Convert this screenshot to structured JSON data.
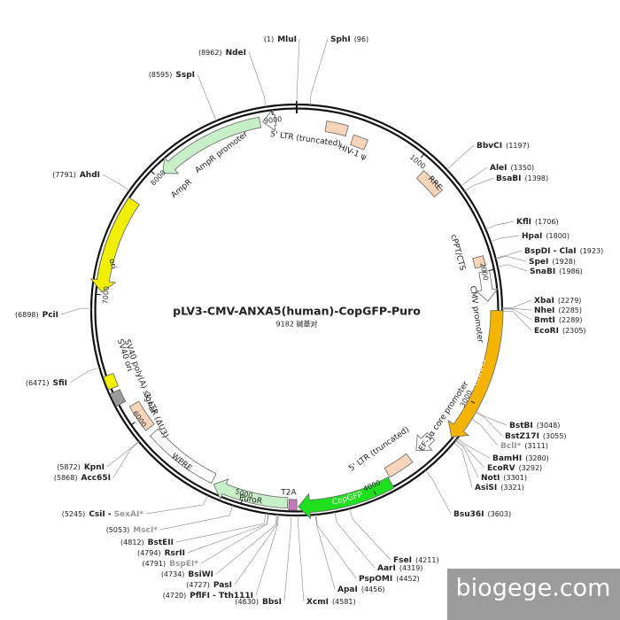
{
  "map": {
    "title": "pLV3-CMV-ANXA5(human)-CopGFP-Puro",
    "size_label": "9182 碱基对",
    "ticks": [
      1000,
      2000,
      3000,
      4000,
      5000,
      6000,
      7000,
      8000,
      9000
    ],
    "features": [
      {
        "label": "5' LTR (truncated)",
        "color": "#f8d5b8"
      },
      {
        "label": "HIV-1 ψ",
        "color": "#f8d5b8"
      },
      {
        "label": "RRE",
        "color": "#f8d5b8"
      },
      {
        "label": "cPPT/CTS",
        "color": "#f8d5b8"
      },
      {
        "label": "CMV promoter",
        "color": "#ffffff"
      },
      {
        "label": "ANXA5",
        "color": "#f5b400"
      },
      {
        "label": "EF-1α core promoter",
        "color": "#ffffff"
      },
      {
        "label": "5' LTR (truncated)",
        "color": "#f8d5b8"
      },
      {
        "label": "CopGFP",
        "color": "#1ee01e"
      },
      {
        "label": "T2A",
        "color": "#c878b8"
      },
      {
        "label": "PuroR",
        "color": "#c8f0c8"
      },
      {
        "label": "WPRE",
        "color": "#ffffff"
      },
      {
        "label": "3' LTR (ΔU3)",
        "color": "#f8d5b8"
      },
      {
        "label": "SV40 poly(A) signal",
        "color": "#9a9a9a"
      },
      {
        "label": "SV40 ori",
        "color": "#f0f000"
      },
      {
        "label": "ori",
        "color": "#f0f000"
      },
      {
        "label": "AmpR",
        "color": "#c8f0c8"
      },
      {
        "label": "AmpR promoter",
        "color": "#ffffff"
      }
    ],
    "sites": [
      {
        "name": "MluI",
        "position": "(1)"
      },
      {
        "name": "SphI",
        "position": "(96)"
      },
      {
        "name": "NdeI",
        "position": "(8962)"
      },
      {
        "name": "SspI",
        "position": "(8595)"
      },
      {
        "name": "AhdI",
        "position": "(7791)"
      },
      {
        "name": "PciI",
        "position": "(6898)"
      },
      {
        "name": "SfiI",
        "position": "(6471)"
      },
      {
        "name": "KpnI",
        "position": "(5872)"
      },
      {
        "name": "Acc65I",
        "position": "(5868)"
      },
      {
        "name": "CsiI -",
        "dim_part": "SexAI*",
        "position": "(5245)"
      },
      {
        "name": "MscI*",
        "position": "(5053)",
        "dim": true
      },
      {
        "name": "BstEII",
        "position": "(4812)"
      },
      {
        "name": "RsrII",
        "position": "(4794)"
      },
      {
        "name": "BspEI*",
        "position": "(4791)",
        "dim": true
      },
      {
        "name": "BsiWI",
        "position": "(4734)"
      },
      {
        "name": "PasI",
        "position": "(4727)"
      },
      {
        "name": "PflFI - Tth111I",
        "position": "(4720)"
      },
      {
        "name": "BbsI",
        "position": "(4630)"
      },
      {
        "name": "XcmI",
        "position": "(4581)"
      },
      {
        "name": "ApaI",
        "position": "(4456)"
      },
      {
        "name": "PspOMI",
        "position": "(4452)"
      },
      {
        "name": "AarI",
        "position": "(4319)"
      },
      {
        "name": "FseI",
        "position": "(4211)"
      },
      {
        "name": "Bsu36I",
        "position": "(3603)"
      },
      {
        "name": "AsiSI",
        "position": "(3321)"
      },
      {
        "name": "NotI",
        "position": "(3301)"
      },
      {
        "name": "EcoRV",
        "position": "(3292)"
      },
      {
        "name": "BamHI",
        "position": "(3280)"
      },
      {
        "name": "BclI*",
        "position": "(3111)",
        "dim": true
      },
      {
        "name": "BstZ17I",
        "position": "(3055)"
      },
      {
        "name": "BstBI",
        "position": "(3048)"
      },
      {
        "name": "EcoRI",
        "position": "(2305)"
      },
      {
        "name": "BmtI",
        "position": "(2289)"
      },
      {
        "name": "NheI",
        "position": "(2285)"
      },
      {
        "name": "XbaI",
        "position": "(2279)"
      },
      {
        "name": "SnaBI",
        "position": "(1986)"
      },
      {
        "name": "SpeI",
        "position": "(1928)"
      },
      {
        "name": "BspDI - ClaI",
        "position": "(1923)"
      },
      {
        "name": "HpaI",
        "position": "(1800)"
      },
      {
        "name": "KflI",
        "position": "(1706)"
      },
      {
        "name": "BsaBI",
        "position": "(1398)"
      },
      {
        "name": "AleI",
        "position": "(1350)"
      },
      {
        "name": "BbvCI",
        "position": "(1197)"
      }
    ],
    "watermark": "biogege.com"
  }
}
